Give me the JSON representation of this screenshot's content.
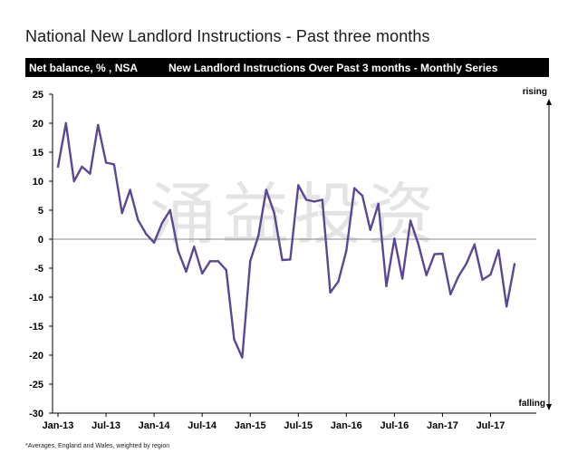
{
  "title": "National New Landlord Instructions - Past three months",
  "header_bar": {
    "left": "Net balance, % , NSA",
    "right": "New Landlord Instructions Over Past 3 months - Monthly Series"
  },
  "footnote": "*Averages, England and Wales, weighted by region",
  "watermark": "涌益投资",
  "colors": {
    "series": "#5b4793",
    "axis": "#000000",
    "zero_line": "#8a8a8a",
    "watermark": "#cfcfcf"
  },
  "chart_data": {
    "type": "line",
    "title": "New Landlord Instructions Over Past 3 months - Monthly Series",
    "ylabel": "Net balance, % , NSA",
    "ylim": [
      -30,
      25
    ],
    "yticks": [
      25,
      20,
      15,
      10,
      5,
      0,
      -5,
      -10,
      -15,
      -20,
      -25,
      -30
    ],
    "xtick_labels": [
      "Jan-13",
      "Jul-13",
      "Jan-14",
      "Jul-14",
      "Jan-15",
      "Jul-15",
      "Jan-16",
      "Jul-16",
      "Jan-17",
      "Jul-17"
    ],
    "annotations": {
      "top": "rising",
      "bottom": "falling"
    },
    "grid": false,
    "legend": "none",
    "series": [
      {
        "x": [
          "2013-01",
          "2013-02",
          "2013-03",
          "2013-04",
          "2013-05",
          "2013-06",
          "2013-07",
          "2013-08",
          "2013-09",
          "2013-10",
          "2013-11",
          "2013-12",
          "2014-01",
          "2014-02",
          "2014-03",
          "2014-04",
          "2014-05",
          "2014-06",
          "2014-07",
          "2014-08",
          "2014-09",
          "2014-10",
          "2014-11",
          "2014-12",
          "2015-01",
          "2015-02",
          "2015-03",
          "2015-04",
          "2015-05",
          "2015-06",
          "2015-07",
          "2015-08",
          "2015-09",
          "2015-10",
          "2015-11",
          "2015-12",
          "2016-01",
          "2016-02",
          "2016-03",
          "2016-04",
          "2016-05",
          "2016-06",
          "2016-07",
          "2016-08",
          "2016-09",
          "2016-10",
          "2016-11",
          "2016-12",
          "2017-01",
          "2017-02",
          "2017-03",
          "2017-04",
          "2017-05",
          "2017-06",
          "2017-07",
          "2017-08",
          "2017-09",
          "2017-10"
        ],
        "values": [
          12.5,
          20,
          10,
          12.5,
          11.3,
          19.7,
          13.2,
          12.9,
          4.5,
          8.5,
          3.3,
          0.9,
          -0.6,
          2.8,
          5,
          -2,
          -5.6,
          -1.3,
          -5.9,
          -3.8,
          -3.8,
          -5.3,
          -17.3,
          -20.4,
          -3.8,
          0.5,
          8.5,
          4.5,
          -3.6,
          -3.5,
          9.3,
          6.8,
          6.5,
          6.8,
          -9.2,
          -7.3,
          -2,
          8.8,
          7.5,
          1.6,
          6.1,
          -8.1,
          0.1,
          -6.8,
          3.2,
          -0.9,
          -6.2,
          -2.6,
          -2.5,
          -9.5,
          -6.4,
          -4.2,
          -0.9,
          -7,
          -6.1,
          -1.9,
          -11.6,
          -4.3
        ]
      }
    ]
  }
}
